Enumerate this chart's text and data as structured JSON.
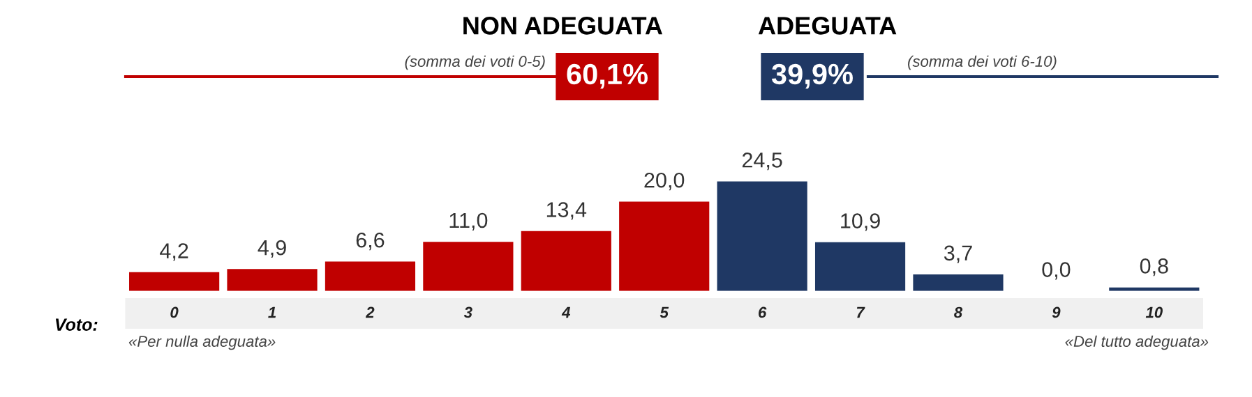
{
  "chart_data": {
    "type": "bar",
    "categories": [
      "0",
      "1",
      "2",
      "3",
      "4",
      "5",
      "6",
      "7",
      "8",
      "9",
      "10"
    ],
    "values": [
      4.2,
      4.9,
      6.6,
      11.0,
      13.4,
      20.0,
      24.5,
      10.9,
      3.7,
      0.0,
      0.8
    ],
    "value_labels": [
      "4,2",
      "4,9",
      "6,6",
      "11,0",
      "13,4",
      "20,0",
      "24,5",
      "10,9",
      "3,7",
      "0,0",
      "0,8"
    ],
    "colors": [
      "#c00000",
      "#c00000",
      "#c00000",
      "#c00000",
      "#c00000",
      "#c00000",
      "#1f3864",
      "#1f3864",
      "#1f3864",
      "#1f3864",
      "#1f3864"
    ],
    "xlabel": "Voto:",
    "annotations": [
      "NON ADEGUATA",
      "ADEGUATA",
      "(somma dei voti 0-5)",
      "60,1%",
      "39,9%",
      "(somma dei voti 6-10)",
      "«Per nulla adeguata»",
      "«Del tutto adeguata»"
    ],
    "grid": false,
    "legend": false
  }
}
